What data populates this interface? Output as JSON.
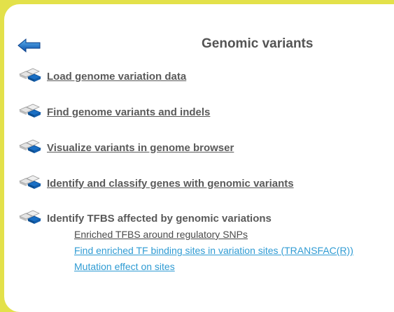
{
  "header": {
    "title": "Genomic variants"
  },
  "items": [
    {
      "label": "Load genome variation data",
      "icon": "layered-diamonds-icon"
    },
    {
      "label": "Find genome variants and indels",
      "icon": "layered-diamonds-icon"
    },
    {
      "label": "Visualize variants in genome browser",
      "icon": "layered-diamonds-icon"
    },
    {
      "label": "Identify and classify genes with genomic variants",
      "icon": "layered-diamonds-icon"
    },
    {
      "label": "Identify TFBS affected by genomic variations",
      "icon": "layered-diamonds-icon"
    }
  ],
  "subitems": [
    {
      "label": "Enriched TFBS around regulatory SNPs"
    },
    {
      "label": "Find enriched TF binding sites in variation sites (TRANSFAC(R))"
    },
    {
      "label": "Mutation effect on sites"
    }
  ],
  "colors": {
    "background_border": "#e3e14a",
    "text_dark": "#5a5a5a",
    "link_blue": "#2f9bd3",
    "icon_blue": "#1a6fc4"
  },
  "icons": {
    "back": "left-arrow-icon"
  }
}
